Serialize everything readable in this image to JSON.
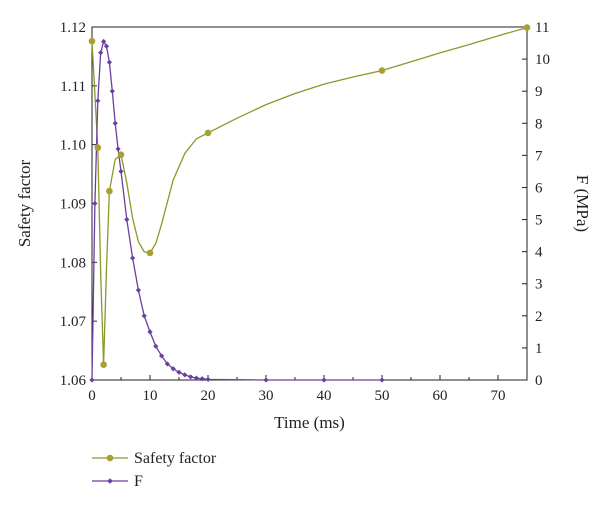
{
  "chart_data": {
    "type": "line",
    "title": "",
    "xlabel": "Time (ms)",
    "ylabel_left": "Safety factor",
    "ylabel_right": "F (MPa)",
    "xlim": [
      0,
      75
    ],
    "ylim_left": [
      1.06,
      1.12
    ],
    "ylim_right": [
      0,
      11
    ],
    "x_ticks": [
      "0",
      "10",
      "20",
      "30",
      "40",
      "50",
      "60",
      "70"
    ],
    "y_left_ticks": [
      "1.06",
      "1.07",
      "1.08",
      "1.09",
      "1.10",
      "1.11",
      "1.12"
    ],
    "y_right_ticks": [
      "0",
      "1",
      "2",
      "3",
      "4",
      "5",
      "6",
      "7",
      "8",
      "9",
      "10",
      "11"
    ],
    "grid": false,
    "legend_position": "bottom-left",
    "colors": {
      "safety": "#8a9a2a",
      "safety_marker": "#a8a030",
      "force": "#6b3fa0"
    },
    "series": [
      {
        "name": "Safety factor",
        "axis": "left",
        "points": [
          [
            0,
            1.1176
          ],
          [
            1,
            1.0995
          ],
          [
            2,
            1.0626
          ],
          [
            3,
            1.0921
          ],
          [
            5,
            1.0983
          ],
          [
            10,
            1.0816
          ],
          [
            20,
            1.102
          ],
          [
            50,
            1.1126
          ],
          [
            75,
            1.1199
          ]
        ],
        "curve": [
          [
            0,
            1.1176
          ],
          [
            0.5,
            1.1085
          ],
          [
            1,
            1.0995
          ],
          [
            1.5,
            1.078
          ],
          [
            2,
            1.0626
          ],
          [
            2.5,
            1.079
          ],
          [
            3,
            1.0921
          ],
          [
            4,
            1.0975
          ],
          [
            5,
            1.0983
          ],
          [
            6,
            1.0935
          ],
          [
            7,
            1.0875
          ],
          [
            8,
            1.0835
          ],
          [
            9,
            1.0818
          ],
          [
            10,
            1.0816
          ],
          [
            11,
            1.0832
          ],
          [
            12,
            1.0865
          ],
          [
            14,
            1.094
          ],
          [
            16,
            1.0985
          ],
          [
            18,
            1.101
          ],
          [
            20,
            1.102
          ],
          [
            25,
            1.1045
          ],
          [
            30,
            1.1068
          ],
          [
            35,
            1.1087
          ],
          [
            40,
            1.1103
          ],
          [
            45,
            1.1115
          ],
          [
            50,
            1.1126
          ],
          [
            55,
            1.1141
          ],
          [
            60,
            1.1156
          ],
          [
            65,
            1.117
          ],
          [
            70,
            1.1185
          ],
          [
            75,
            1.1199
          ]
        ]
      },
      {
        "name": "F",
        "axis": "right",
        "points": [
          [
            0,
            0
          ],
          [
            0.5,
            5.5
          ],
          [
            1,
            8.7
          ],
          [
            1.5,
            10.2
          ],
          [
            2,
            10.55
          ],
          [
            2.5,
            10.4
          ],
          [
            3,
            9.9
          ],
          [
            3.5,
            9.0
          ],
          [
            4,
            8.0
          ],
          [
            4.5,
            7.2
          ],
          [
            5,
            6.5
          ],
          [
            6,
            5.0
          ],
          [
            7,
            3.8
          ],
          [
            8,
            2.8
          ],
          [
            9,
            2.0
          ],
          [
            10,
            1.5
          ],
          [
            11,
            1.05
          ],
          [
            12,
            0.75
          ],
          [
            13,
            0.5
          ],
          [
            14,
            0.35
          ],
          [
            15,
            0.24
          ],
          [
            16,
            0.16
          ],
          [
            17,
            0.1
          ],
          [
            18,
            0.06
          ],
          [
            19,
            0.04
          ],
          [
            20,
            0.02
          ],
          [
            30,
            0
          ],
          [
            40,
            0
          ],
          [
            50,
            0
          ]
        ]
      }
    ]
  }
}
